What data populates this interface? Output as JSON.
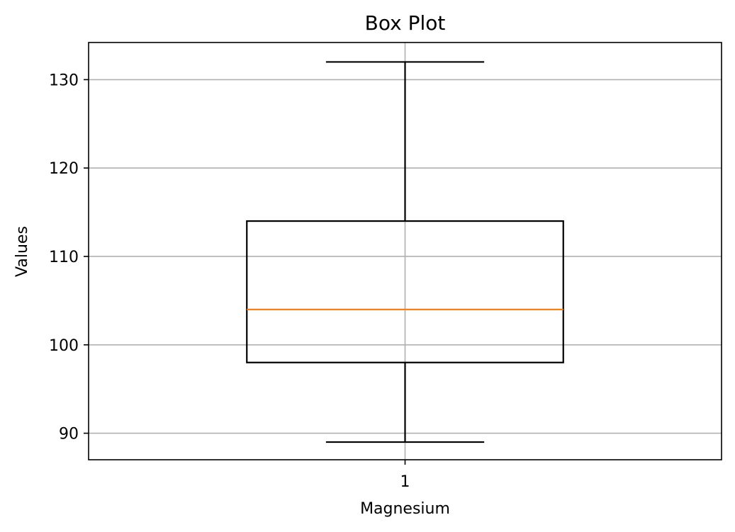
{
  "chart_data": {
    "type": "box",
    "title": "Box Plot",
    "xlabel": "Magnesium",
    "ylabel": "Values",
    "categories": [
      "1"
    ],
    "ylim": [
      87,
      134.2
    ],
    "yticks": [
      90,
      100,
      110,
      120,
      130
    ],
    "grid": true,
    "series": [
      {
        "whisker_low": 89,
        "q1": 98,
        "median": 104,
        "q3": 114,
        "whisker_high": 132
      }
    ],
    "colors": {
      "box": "#000000",
      "median": "#ff7f0e",
      "grid": "#b0b0b0"
    }
  }
}
